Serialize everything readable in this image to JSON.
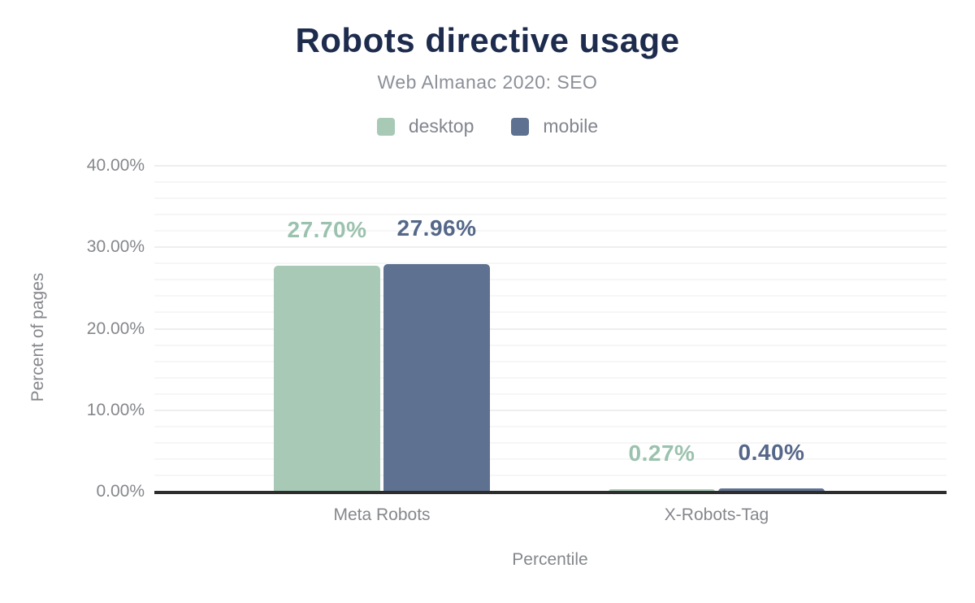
{
  "header": {
    "title": "Robots directive usage",
    "subtitle": "Web Almanac 2020: SEO"
  },
  "legend": [
    {
      "name": "desktop",
      "label": "desktop",
      "color": "#a7c9b6"
    },
    {
      "name": "mobile",
      "label": "mobile",
      "color": "#5e7190"
    }
  ],
  "colors": {
    "title": "#1d2b4d",
    "subtitle": "#8b8f98",
    "axis_text": "#85878c",
    "axis_line": "#2d2d2d",
    "grid_major": "#eeeeee",
    "grid_minor": "#f6f6f6",
    "desktop": "#a7c9b6",
    "mobile": "#5e7190",
    "desktop_label": "#9bc2ae",
    "mobile_label": "#556789"
  },
  "chart_data": {
    "type": "bar",
    "title": "Robots directive usage",
    "subtitle": "Web Almanac 2020: SEO",
    "categories": [
      "Meta Robots",
      "X-Robots-Tag"
    ],
    "series": [
      {
        "name": "desktop",
        "color": "#a7c9b6",
        "label_color": "#9bc2ae",
        "values": [
          27.7,
          0.27
        ],
        "labels": [
          "27.70%",
          "0.27%"
        ]
      },
      {
        "name": "mobile",
        "color": "#5e7190",
        "label_color": "#556789",
        "values": [
          27.96,
          0.4
        ],
        "labels": [
          "27.96%",
          "0.40%"
        ]
      }
    ],
    "xlabel": "Percentile",
    "ylabel": "Percent of pages",
    "ylim": [
      0,
      40
    ],
    "yticks": [
      {
        "value": 0,
        "label": "0.00%"
      },
      {
        "value": 10,
        "label": "10.00%"
      },
      {
        "value": 20,
        "label": "20.00%"
      },
      {
        "value": 30,
        "label": "30.00%"
      },
      {
        "value": 40,
        "label": "40.00%"
      }
    ],
    "grid": {
      "minor_step": 2,
      "major_step": 10,
      "gridlines_on": true
    },
    "legend_position": "top"
  }
}
